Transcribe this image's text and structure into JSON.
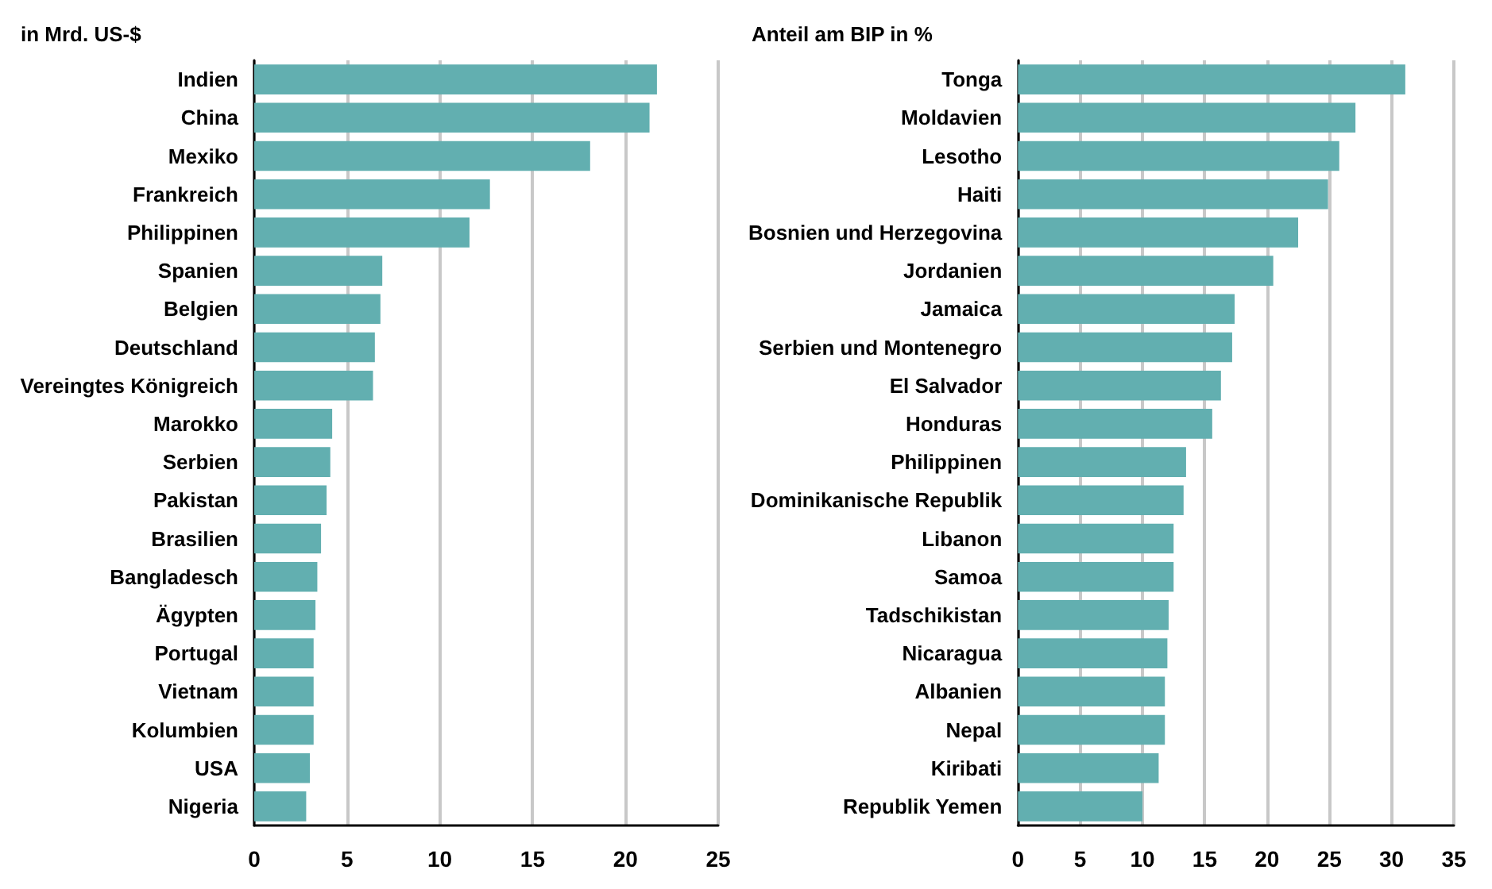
{
  "chart_data": [
    {
      "type": "bar",
      "orientation": "horizontal",
      "title": "in Mrd. US-$",
      "categories": [
        "Indien",
        "China",
        "Mexiko",
        "Frankreich",
        "Philippinen",
        "Spanien",
        "Belgien",
        "Deutschland",
        "Vereingtes Königreich",
        "Marokko",
        "Serbien",
        "Pakistan",
        "Brasilien",
        "Bangladesch",
        "Ägypten",
        "Portugal",
        "Vietnam",
        "Kolumbien",
        "USA",
        "Nigeria"
      ],
      "values": [
        21.7,
        21.3,
        18.1,
        12.7,
        11.6,
        6.9,
        6.8,
        6.5,
        6.4,
        4.2,
        4.1,
        3.9,
        3.6,
        3.4,
        3.3,
        3.2,
        3.2,
        3.2,
        3.0,
        2.8
      ],
      "color": "#62afb0",
      "xlim": [
        0,
        25
      ],
      "xticks": [
        0,
        5,
        10,
        15,
        20,
        25
      ],
      "grid": "x"
    },
    {
      "type": "bar",
      "orientation": "horizontal",
      "title": "Anteil am BIP in %",
      "categories": [
        "Tonga",
        "Moldavien",
        "Lesotho",
        "Haiti",
        "Bosnien und Herzegovina",
        "Jordanien",
        "Jamaica",
        "Serbien und Montenegro",
        "El Salvador",
        "Honduras",
        "Philippinen",
        "Dominikanische Republik",
        "Libanon",
        "Samoa",
        "Tadschikistan",
        "Nicaragua",
        "Albanien",
        "Nepal",
        "Kiribati",
        "Republik Yemen"
      ],
      "values": [
        31.1,
        27.1,
        25.8,
        24.9,
        22.5,
        20.5,
        17.4,
        17.2,
        16.3,
        15.6,
        13.5,
        13.3,
        12.5,
        12.5,
        12.1,
        12.0,
        11.8,
        11.8,
        11.3,
        10.0
      ],
      "color": "#62afb0",
      "xlim": [
        0,
        35
      ],
      "xticks": [
        0,
        5,
        10,
        15,
        20,
        25,
        30,
        35
      ],
      "grid": "x"
    }
  ]
}
